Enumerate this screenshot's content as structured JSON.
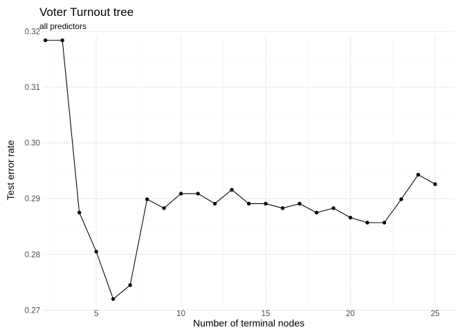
{
  "chart_data": {
    "type": "line",
    "title": "Voter Turnout tree",
    "subtitle": "all predictors",
    "xlabel": "Number of terminal nodes",
    "ylabel": "Test error rate",
    "xlim": [
      1.85,
      26.15
    ],
    "ylim": [
      0.2708,
      0.3193
    ],
    "x_ticks": [
      5,
      10,
      15,
      20,
      25
    ],
    "x_tick_labels": [
      "5",
      "10",
      "15",
      "20",
      "25"
    ],
    "y_ticks": [
      0.27,
      0.28,
      0.29,
      0.3,
      0.31,
      0.32
    ],
    "y_tick_labels": [
      "0.27",
      "0.28",
      "0.29",
      "0.30",
      "0.31",
      "0.32"
    ],
    "grid": true,
    "x": [
      2,
      3,
      4,
      5,
      6,
      7,
      8,
      9,
      10,
      11,
      12,
      13,
      14,
      15,
      16,
      17,
      18,
      19,
      20,
      21,
      22,
      23,
      24,
      25
    ],
    "y": [
      0.3184,
      0.3184,
      0.2875,
      0.2805,
      0.272,
      0.2745,
      0.2899,
      0.2883,
      0.2909,
      0.2909,
      0.2891,
      0.2916,
      0.2891,
      0.2891,
      0.2883,
      0.2891,
      0.2875,
      0.2883,
      0.2866,
      0.2857,
      0.2857,
      0.2899,
      0.2943,
      0.2926
    ],
    "color": "#000000"
  }
}
